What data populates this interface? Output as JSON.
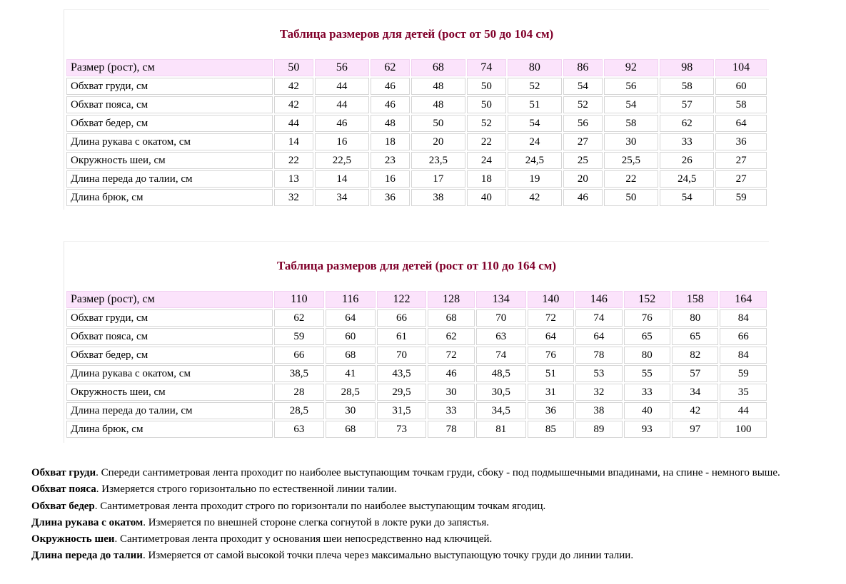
{
  "tables": [
    {
      "title": "Таблица размеров для детей (рост от 50 до 104 см)",
      "header": {
        "label": "Размер (рост), см",
        "values": [
          "50",
          "56",
          "62",
          "68",
          "74",
          "80",
          "86",
          "92",
          "98",
          "104"
        ]
      },
      "rows": [
        {
          "label": "Обхват груди, см",
          "values": [
            "42",
            "44",
            "46",
            "48",
            "50",
            "52",
            "54",
            "56",
            "58",
            "60"
          ]
        },
        {
          "label": "Обхват пояса, см",
          "values": [
            "42",
            "44",
            "46",
            "48",
            "50",
            "51",
            "52",
            "54",
            "57",
            "58"
          ]
        },
        {
          "label": "Обхват бедер, см",
          "values": [
            "44",
            "46",
            "48",
            "50",
            "52",
            "54",
            "56",
            "58",
            "62",
            "64"
          ]
        },
        {
          "label": "Длина рукава с окатом, см",
          "values": [
            "14",
            "16",
            "18",
            "20",
            "22",
            "24",
            "27",
            "30",
            "33",
            "36"
          ]
        },
        {
          "label": "Окружность шеи, см",
          "values": [
            "22",
            "22,5",
            "23",
            "23,5",
            "24",
            "24,5",
            "25",
            "25,5",
            "26",
            "27"
          ]
        },
        {
          "label": "Длина переда до талии, см",
          "values": [
            "13",
            "14",
            "16",
            "17",
            "18",
            "19",
            "20",
            "22",
            "24,5",
            "27"
          ]
        },
        {
          "label": "Длина брюк, см",
          "values": [
            "32",
            "34",
            "36",
            "38",
            "40",
            "42",
            "46",
            "50",
            "54",
            "59"
          ]
        }
      ]
    },
    {
      "title": "Таблица размеров для детей (рост от 110 до 164 см)",
      "header": {
        "label": "Размер (рост), см",
        "values": [
          "110",
          "116",
          "122",
          "128",
          "134",
          "140",
          "146",
          "152",
          "158",
          "164"
        ]
      },
      "rows": [
        {
          "label": "Обхват груди, см",
          "values": [
            "62",
            "64",
            "66",
            "68",
            "70",
            "72",
            "74",
            "76",
            "80",
            "84"
          ]
        },
        {
          "label": "Обхват пояса, см",
          "values": [
            "59",
            "60",
            "61",
            "62",
            "63",
            "64",
            "64",
            "65",
            "65",
            "66"
          ]
        },
        {
          "label": "Обхват бедер, см",
          "values": [
            "66",
            "68",
            "70",
            "72",
            "74",
            "76",
            "78",
            "80",
            "82",
            "84"
          ]
        },
        {
          "label": "Длина рукава с окатом, см",
          "values": [
            "38,5",
            "41",
            "43,5",
            "46",
            "48,5",
            "51",
            "53",
            "55",
            "57",
            "59"
          ]
        },
        {
          "label": "Окружность шеи, см",
          "values": [
            "28",
            "28,5",
            "29,5",
            "30",
            "30,5",
            "31",
            "32",
            "33",
            "34",
            "35"
          ]
        },
        {
          "label": "Длина переда до талии, см",
          "values": [
            "28,5",
            "30",
            "31,5",
            "33",
            "34,5",
            "36",
            "38",
            "40",
            "42",
            "44"
          ]
        },
        {
          "label": "Длина брюк, см",
          "values": [
            "63",
            "68",
            "73",
            "78",
            "81",
            "85",
            "89",
            "93",
            "97",
            "100"
          ]
        }
      ]
    }
  ],
  "notes": [
    {
      "term": "Обхват груди",
      "text": ". Спереди сантиметровая лента проходит по наиболее выступающим точкам груди, сбоку - под подмышечными впадинами, на спине - немного выше."
    },
    {
      "term": "Обхват пояса",
      "text": ". Измеряется строго горизонтально по естественной линии талии."
    },
    {
      "term": "Обхват бедер",
      "text": ". Сантиметровая лента проходит строго по горизонтали по наиболее выступающим точкам ягодиц."
    },
    {
      "term": "Длина рукава с окатом",
      "text": ". Измеряется по внешней стороне слегка согнутой в локте руки до запястья."
    },
    {
      "term": "Окружность шеи",
      "text": ". Сантиметровая лента проходит у основания шеи непосредственно над ключицей."
    },
    {
      "term": "Длина переда до талии",
      "text": ". Измеряется от самой высокой точки плеча через максимально выступающую точку груди до линии талии."
    }
  ],
  "colors": {
    "title": "#80002a",
    "header_bg": "#fbe3fb"
  }
}
